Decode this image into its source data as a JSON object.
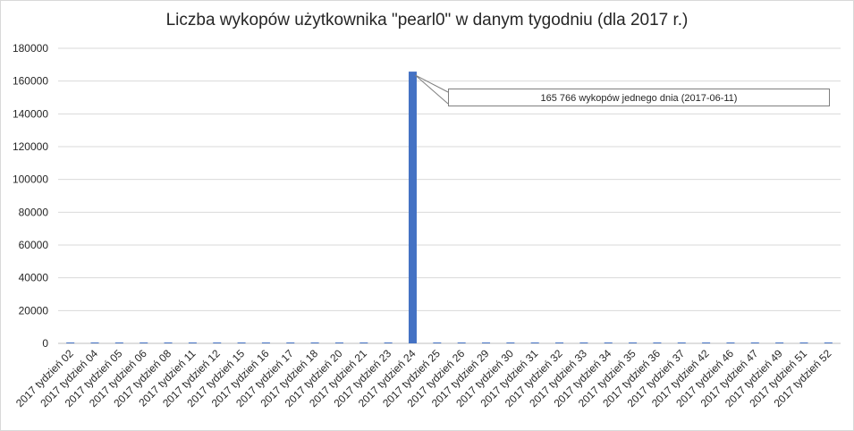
{
  "chart_data": {
    "type": "bar",
    "title": "Liczba wykopów użytkownika \"pearl0\"  w danym tygodniu (dla 2017 r.)",
    "xlabel": "",
    "ylabel": "",
    "ylim": [
      0,
      180000
    ],
    "yticks": [
      "0",
      "20000",
      "40000",
      "60000",
      "80000",
      "100000",
      "120000",
      "140000",
      "160000",
      "180000"
    ],
    "grid": true,
    "legend": "none",
    "bar_color": "#4472c4",
    "categories": [
      "2017 tydzień 02",
      "2017 tydzień 04",
      "2017 tydzień 05",
      "2017 tydzień 06",
      "2017 tydzień 08",
      "2017 tydzień 11",
      "2017 tydzień 12",
      "2017 tydzień 15",
      "2017 tydzień 16",
      "2017 tydzień 17",
      "2017 tydzień 18",
      "2017 tydzień 20",
      "2017 tydzień 21",
      "2017 tydzień 23",
      "2017 tydzień 24",
      "2017 tydzień 25",
      "2017 tydzień 26",
      "2017 tydzień 29",
      "2017 tydzień 30",
      "2017 tydzień 31",
      "2017 tydzień 32",
      "2017 tydzień 33",
      "2017 tydzień 34",
      "2017 tydzień 35",
      "2017 tydzień 36",
      "2017 tydzień 37",
      "2017 tydzień 42",
      "2017 tydzień 46",
      "2017 tydzień 47",
      "2017 tydzień 49",
      "2017 tydzień 51",
      "2017 tydzień 52"
    ],
    "values": [
      300,
      300,
      300,
      300,
      300,
      300,
      300,
      300,
      300,
      300,
      300,
      300,
      300,
      300,
      165766,
      300,
      300,
      300,
      300,
      300,
      300,
      300,
      300,
      300,
      300,
      300,
      300,
      300,
      300,
      300,
      300,
      300
    ],
    "annotation": {
      "text": "165 766 wykopów jednego dnia (2017-06-11)",
      "category": "2017 tydzień 24"
    }
  }
}
